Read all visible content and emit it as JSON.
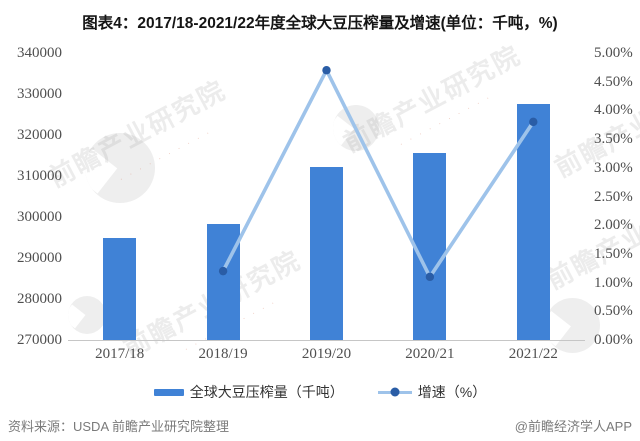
{
  "title": "图表4：2017/18-2021/22年度全球大豆压榨量及增速(单位：千吨，%)",
  "footer": {
    "source": "资料来源：USDA 前瞻产业研究院整理",
    "credit": "@前瞻经济学人APP"
  },
  "watermark": {
    "text": "前瞻产业研究院",
    "accent": "· · · · · · · · · ·"
  },
  "chart_data": {
    "type": "bar",
    "title": "图表4：2017/18-2021/22年度全球大豆压榨量及增速(单位：千吨，%)",
    "categories": [
      "2017/18",
      "2018/19",
      "2019/20",
      "2020/21",
      "2021/22"
    ],
    "series": [
      {
        "name": "全球大豆压榨量（千吨）",
        "type": "bar",
        "axis": "left",
        "values": [
          295000,
          298400,
          312200,
          315500,
          327600
        ],
        "color": "#4082d6"
      },
      {
        "name": "增速（%）",
        "type": "line",
        "axis": "right",
        "values": [
          null,
          1.2,
          4.7,
          1.1,
          3.8
        ],
        "color": "#9ec3ea",
        "marker_color": "#2a5da6"
      }
    ],
    "left_axis": {
      "min": 270000,
      "max": 340000,
      "step": 10000
    },
    "right_axis": {
      "min": 0,
      "max": 5,
      "step": 0.5,
      "suffix": "%"
    },
    "grid": false,
    "legend_position": "bottom"
  }
}
